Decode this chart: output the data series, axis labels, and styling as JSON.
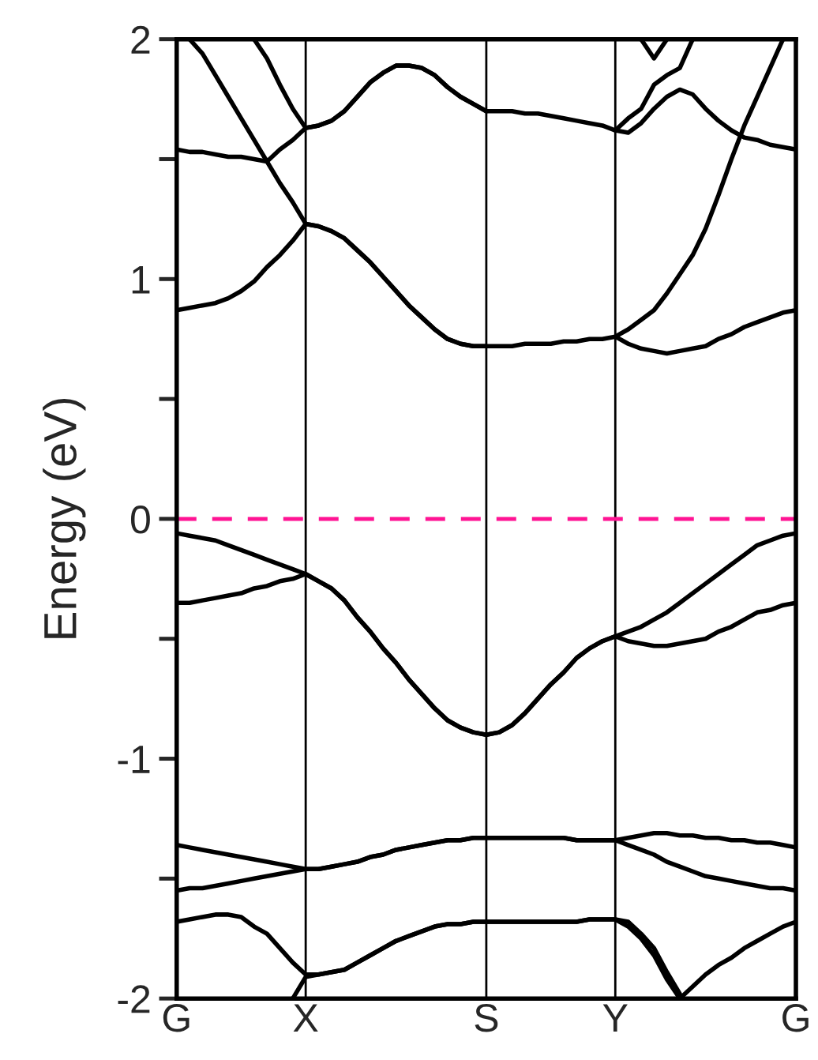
{
  "chart_data": {
    "type": "line",
    "ylabel": "Energy (eV)",
    "ylim": [
      -2,
      2
    ],
    "categories": [
      "G",
      null,
      null,
      null,
      null,
      null,
      null,
      null,
      null,
      null,
      "X",
      null,
      null,
      null,
      null,
      null,
      null,
      null,
      null,
      null,
      null,
      null,
      null,
      null,
      "S",
      null,
      null,
      null,
      null,
      null,
      null,
      null,
      null,
      null,
      "Y",
      null,
      null,
      null,
      null,
      null,
      null,
      null,
      null,
      null,
      null,
      null,
      null,
      null,
      "G"
    ],
    "yticks": [
      -2,
      {
        "value": -1.5,
        "label": null
      },
      -1,
      {
        "value": -0.5,
        "label": null
      },
      0,
      {
        "value": 0.5,
        "label": null
      },
      1,
      {
        "value": 1.5,
        "label": null
      },
      2
    ],
    "grid": "x",
    "line_style": "solid",
    "ref_lines": [
      {
        "axis": "y",
        "value": 0,
        "color": "#ff1493",
        "line_style": "dashed"
      }
    ],
    "series": [
      {
        "color": "#000000",
        "values": [
          -0.06,
          -0.07,
          -0.08,
          -0.09,
          -0.11,
          -0.13,
          -0.15,
          -0.17,
          -0.19,
          -0.21,
          -0.23,
          -0.26,
          -0.29,
          -0.34,
          -0.41,
          -0.47,
          -0.54,
          -0.6,
          -0.67,
          -0.73,
          -0.79,
          -0.84,
          -0.87,
          -0.89,
          -0.9,
          -0.89,
          -0.86,
          -0.81,
          -0.75,
          -0.69,
          -0.64,
          -0.58,
          -0.54,
          -0.51,
          -0.49,
          -0.47,
          -0.45,
          -0.42,
          -0.39,
          -0.35,
          -0.31,
          -0.27,
          -0.23,
          -0.19,
          -0.15,
          -0.11,
          -0.09,
          -0.07,
          -0.06
        ]
      },
      {
        "color": "#000000",
        "values": [
          -0.35,
          -0.35,
          -0.34,
          -0.33,
          -0.32,
          -0.31,
          -0.29,
          -0.28,
          -0.26,
          -0.25,
          -0.23,
          -0.26,
          -0.29,
          -0.34,
          -0.41,
          -0.47,
          -0.54,
          -0.6,
          -0.67,
          -0.73,
          -0.79,
          -0.84,
          -0.87,
          -0.89,
          -0.9,
          -0.89,
          -0.86,
          -0.81,
          -0.75,
          -0.69,
          -0.64,
          -0.58,
          -0.54,
          -0.51,
          -0.49,
          -0.51,
          -0.52,
          -0.53,
          -0.53,
          -0.52,
          -0.51,
          -0.5,
          -0.47,
          -0.45,
          -0.42,
          -0.39,
          -0.38,
          -0.36,
          -0.35
        ]
      },
      {
        "color": "#000000",
        "values": [
          -1.36,
          -1.37,
          -1.38,
          -1.39,
          -1.4,
          -1.41,
          -1.42,
          -1.43,
          -1.44,
          -1.45,
          -1.46,
          -1.46,
          -1.45,
          -1.44,
          -1.43,
          -1.41,
          -1.4,
          -1.38,
          -1.37,
          -1.36,
          -1.35,
          -1.34,
          -1.34,
          -1.33,
          -1.33,
          -1.33,
          -1.33,
          -1.33,
          -1.33,
          -1.33,
          -1.33,
          -1.34,
          -1.34,
          -1.34,
          -1.34,
          -1.33,
          -1.32,
          -1.31,
          -1.31,
          -1.32,
          -1.32,
          -1.33,
          -1.33,
          -1.34,
          -1.34,
          -1.35,
          -1.35,
          -1.36,
          -1.37
        ]
      },
      {
        "color": "#000000",
        "values": [
          -1.55,
          -1.54,
          -1.54,
          -1.53,
          -1.52,
          -1.51,
          -1.5,
          -1.49,
          -1.48,
          -1.47,
          -1.46,
          -1.46,
          -1.45,
          -1.44,
          -1.43,
          -1.41,
          -1.4,
          -1.38,
          -1.37,
          -1.36,
          -1.35,
          -1.34,
          -1.34,
          -1.33,
          -1.33,
          -1.33,
          -1.33,
          -1.33,
          -1.33,
          -1.33,
          -1.33,
          -1.34,
          -1.34,
          -1.34,
          -1.34,
          -1.36,
          -1.38,
          -1.4,
          -1.43,
          -1.45,
          -1.47,
          -1.49,
          -1.5,
          -1.51,
          -1.52,
          -1.53,
          -1.54,
          -1.54,
          -1.55
        ]
      },
      {
        "color": "#000000",
        "values": [
          -1.68,
          -1.67,
          -1.66,
          -1.65,
          -1.65,
          -1.66,
          -1.7,
          -1.73,
          -1.79,
          -1.85,
          -1.9,
          -1.9,
          -1.89,
          -1.88,
          -1.85,
          -1.82,
          -1.79,
          -1.76,
          -1.74,
          -1.72,
          -1.7,
          -1.69,
          -1.69,
          -1.68,
          -1.68,
          -1.68,
          -1.68,
          -1.68,
          -1.68,
          -1.68,
          -1.68,
          -1.68,
          -1.67,
          -1.67,
          -1.67,
          -1.68,
          -1.73,
          -1.79,
          -1.89,
          -1.98,
          null,
          null,
          null,
          null,
          null,
          null,
          null,
          null,
          null
        ]
      },
      {
        "color": "#000000",
        "values": [
          null,
          null,
          null,
          null,
          null,
          null,
          null,
          null,
          null,
          -2.0,
          -1.91,
          -1.9,
          -1.89,
          -1.88,
          -1.85,
          -1.82,
          -1.79,
          -1.76,
          -1.74,
          -1.72,
          -1.7,
          -1.69,
          -1.69,
          -1.68,
          -1.68,
          -1.68,
          -1.68,
          -1.68,
          -1.68,
          -1.68,
          -1.68,
          -1.68,
          -1.67,
          -1.67,
          -1.67,
          -1.7,
          -1.75,
          -1.82,
          -1.92,
          -2.0,
          null,
          null,
          null,
          null,
          null,
          null,
          null,
          null,
          null
        ]
      },
      {
        "color": "#000000",
        "values": [
          null,
          null,
          null,
          null,
          null,
          null,
          null,
          null,
          null,
          null,
          null,
          null,
          null,
          null,
          null,
          null,
          null,
          null,
          null,
          null,
          null,
          null,
          null,
          null,
          null,
          null,
          null,
          null,
          null,
          null,
          null,
          null,
          null,
          null,
          null,
          null,
          null,
          null,
          null,
          -2.0,
          -1.95,
          -1.9,
          -1.86,
          -1.83,
          -1.79,
          -1.76,
          -1.73,
          -1.7,
          -1.68
        ]
      },
      {
        "color": "#000000",
        "values": [
          0.87,
          0.88,
          0.89,
          0.9,
          0.92,
          0.95,
          0.99,
          1.05,
          1.1,
          1.16,
          1.23,
          1.22,
          1.2,
          1.17,
          1.12,
          1.07,
          1.01,
          0.95,
          0.89,
          0.84,
          0.79,
          0.75,
          0.73,
          0.72,
          0.72,
          0.72,
          0.72,
          0.73,
          0.73,
          0.73,
          0.74,
          0.74,
          0.75,
          0.75,
          0.76,
          0.73,
          0.71,
          0.7,
          0.69,
          0.7,
          0.71,
          0.72,
          0.75,
          0.77,
          0.8,
          0.82,
          0.84,
          0.86,
          0.87
        ]
      },
      {
        "color": "#000000",
        "values": [
          null,
          null,
          null,
          null,
          null,
          null,
          null,
          null,
          null,
          null,
          null,
          null,
          null,
          null,
          null,
          null,
          null,
          null,
          null,
          null,
          null,
          null,
          null,
          null,
          null,
          null,
          null,
          null,
          null,
          null,
          null,
          null,
          null,
          null,
          0.76,
          0.79,
          0.83,
          0.87,
          0.94,
          1.02,
          1.1,
          1.21,
          1.35,
          1.5,
          1.64,
          1.76,
          1.88,
          2.0,
          null
        ]
      },
      {
        "color": "#000000",
        "values": [
          null,
          2.0,
          1.94,
          1.85,
          1.76,
          1.67,
          1.58,
          1.49,
          1.4,
          1.32,
          1.23,
          1.22,
          1.2,
          1.17,
          1.12,
          1.07,
          1.01,
          0.95,
          0.89,
          0.84,
          0.79,
          0.75,
          0.73,
          0.72,
          0.72,
          null,
          null,
          null,
          null,
          null,
          null,
          null,
          null,
          null,
          null,
          null,
          null,
          null,
          null,
          null,
          null,
          null,
          null,
          null,
          null,
          null,
          null,
          null,
          null
        ]
      },
      {
        "color": "#000000",
        "values": [
          1.54,
          1.53,
          1.53,
          1.52,
          1.51,
          1.51,
          1.5,
          1.49,
          1.54,
          1.58,
          1.63,
          1.64,
          1.66,
          1.7,
          1.76,
          1.82,
          1.86,
          1.89,
          1.89,
          1.88,
          1.85,
          1.8,
          1.76,
          1.73,
          1.7,
          1.7,
          1.7,
          1.69,
          1.69,
          1.68,
          1.67,
          1.66,
          1.65,
          1.64,
          1.62,
          1.61,
          1.65,
          1.71,
          1.76,
          1.79,
          1.77,
          1.71,
          1.66,
          1.62,
          1.59,
          1.58,
          1.56,
          1.55,
          1.54
        ]
      },
      {
        "color": "#000000",
        "values": [
          null,
          null,
          null,
          null,
          null,
          null,
          2.0,
          1.92,
          1.81,
          1.71,
          1.63,
          1.64,
          1.66,
          1.7,
          1.76,
          1.82,
          1.86,
          1.89,
          1.89,
          1.88,
          1.85,
          1.8,
          1.76,
          1.73,
          1.7,
          null,
          null,
          null,
          null,
          null,
          null,
          null,
          null,
          null,
          null,
          null,
          null,
          null,
          null,
          null,
          null,
          null,
          null,
          null,
          null,
          null,
          null,
          null,
          null
        ]
      },
      {
        "color": "#000000",
        "values": [
          null,
          null,
          null,
          null,
          null,
          null,
          null,
          null,
          null,
          null,
          null,
          null,
          null,
          null,
          null,
          null,
          null,
          null,
          null,
          null,
          null,
          null,
          null,
          null,
          null,
          null,
          null,
          null,
          null,
          null,
          null,
          null,
          null,
          null,
          1.62,
          1.67,
          1.71,
          1.81,
          1.85,
          1.88,
          2.0,
          null,
          null,
          null,
          null,
          null,
          null,
          null,
          null
        ]
      },
      {
        "color": "#000000",
        "values": [
          null,
          null,
          null,
          null,
          null,
          null,
          null,
          null,
          null,
          null,
          null,
          null,
          null,
          null,
          null,
          null,
          null,
          null,
          null,
          null,
          null,
          null,
          null,
          null,
          null,
          null,
          null,
          null,
          null,
          null,
          null,
          null,
          null,
          null,
          null,
          null,
          2.0,
          1.92,
          2.0,
          null,
          null,
          null,
          null,
          null,
          null,
          null,
          null,
          null,
          null
        ]
      }
    ]
  }
}
